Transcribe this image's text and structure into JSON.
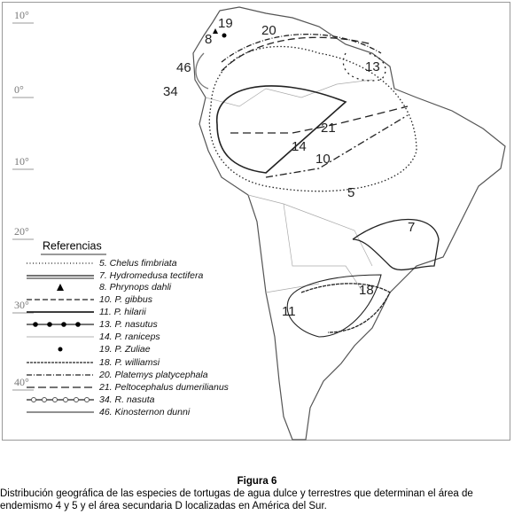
{
  "map": {
    "latitude_labels": [
      "10°",
      "0°",
      "10°",
      "20°",
      "30°",
      "40°"
    ],
    "range_labels": [
      "19",
      "8",
      "20",
      "46",
      "34",
      "13",
      "21",
      "14",
      "10",
      "5",
      "7",
      "18",
      "11"
    ],
    "legend": {
      "title": "Referencias",
      "entries": [
        "5. Chelus fimbriata",
        "7. Hydromedusa tectifera",
        "8. Phrynops dahli",
        "10. P. gibbus",
        "11. P. hilarii",
        "13. P. nasutus",
        "14. P. raniceps",
        "19. P. Zuliae",
        "18. P. williamsi",
        "20. Platemys platycephala",
        "21. Peltocephalus dumerilianus",
        "34. R. nasuta",
        "46. Kinosternon dunni"
      ]
    }
  },
  "caption": {
    "title": "Figura 6",
    "text": "Distribución geográfica de las especies de tortugas de agua dulce y terrestres que determinan el área de endemismo 4 y 5 y el área secundaria D localizadas en América del Sur."
  }
}
